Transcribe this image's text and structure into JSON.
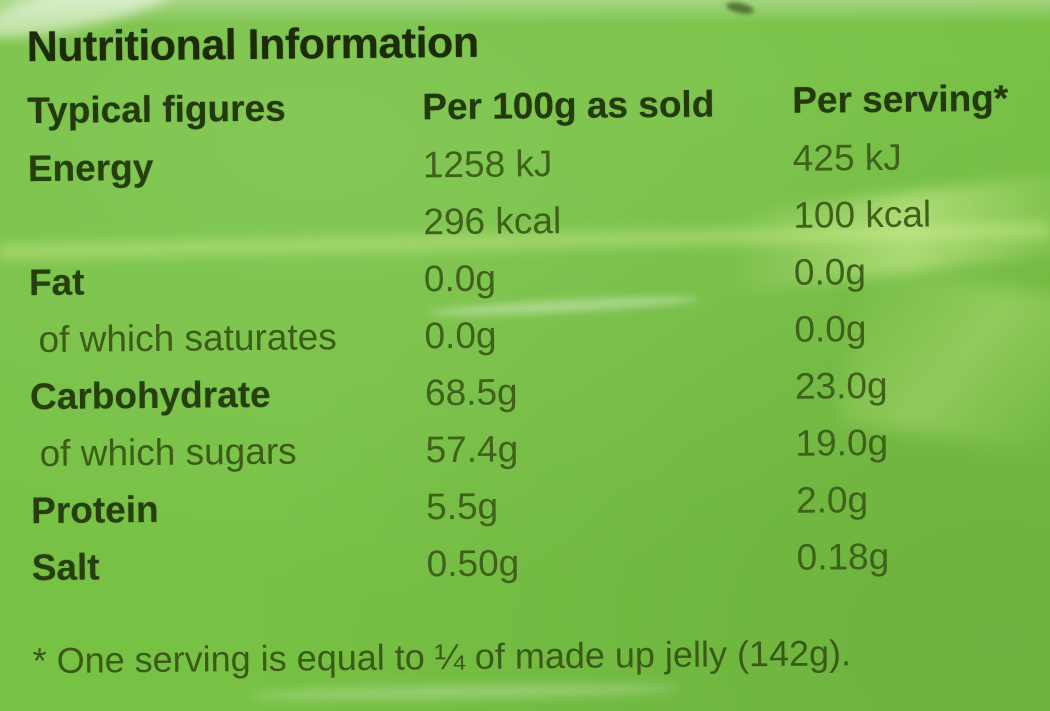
{
  "label": {
    "title": "Nutritional Information",
    "columns": [
      "Typical figures",
      "Per 100g as sold",
      "Per serving*"
    ],
    "rows": [
      {
        "label": "Energy",
        "per100g": "1258 kJ",
        "perServing": "425 kJ"
      },
      {
        "label": "",
        "per100g": "296 kcal",
        "perServing": "100 kcal"
      },
      {
        "label": "Fat",
        "per100g": "0.0g",
        "perServing": "0.0g"
      },
      {
        "label": "of which saturates",
        "per100g": "0.0g",
        "perServing": "0.0g"
      },
      {
        "label": "Carbohydrate",
        "per100g": "68.5g",
        "perServing": "23.0g"
      },
      {
        "label": "of which sugars",
        "per100g": "57.4g",
        "perServing": "19.0g"
      },
      {
        "label": "Protein",
        "per100g": "5.5g",
        "perServing": "2.0g"
      },
      {
        "label": "Salt",
        "per100g": "0.50g",
        "perServing": "0.18g"
      }
    ],
    "footnote": "* One serving is equal to ¼ of made up jelly (142g).",
    "colors": {
      "background": "#77c144",
      "title_text": "#1c2b09",
      "label_text": "#263f0f",
      "value_text": "#3f611a"
    }
  }
}
